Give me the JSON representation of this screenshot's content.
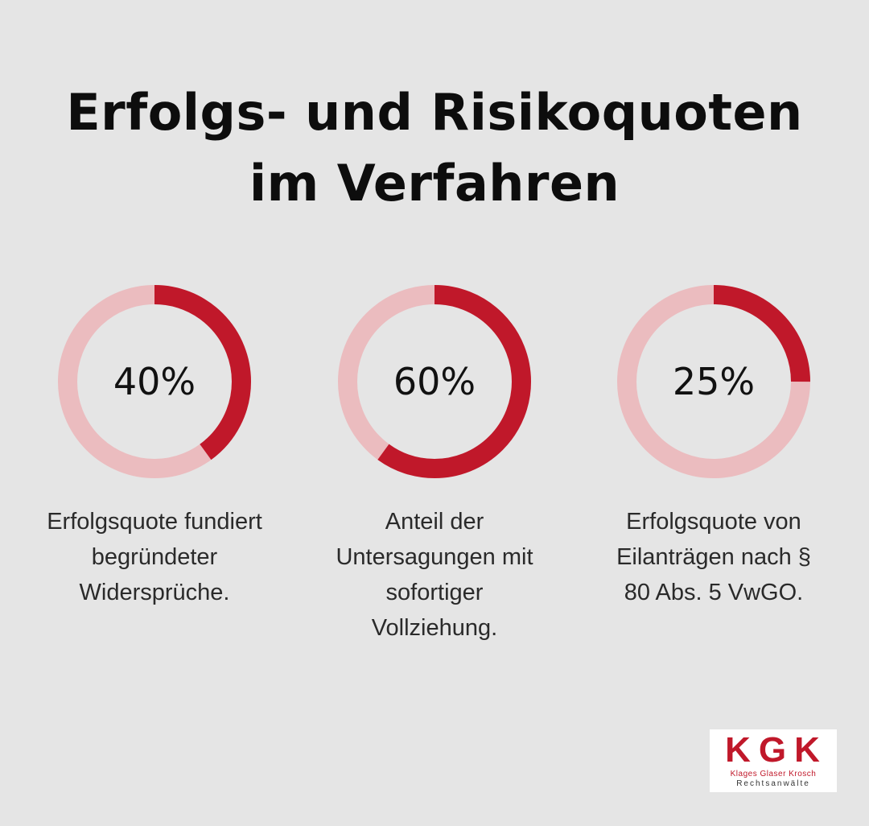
{
  "header": {
    "title_line1": "Erfolgs- und Risikoquoten",
    "title_line2": "im Verfahren"
  },
  "chart_data": [
    {
      "type": "pie",
      "label": "40%",
      "value": 40,
      "caption_lines": [
        "Erfolgsquote fundiert",
        "begründeter",
        "Widersprüche."
      ]
    },
    {
      "type": "pie",
      "label": "60%",
      "value": 60,
      "caption_lines": [
        "Anteil der",
        "Untersagungen mit",
        "sofortiger",
        "Vollziehung."
      ]
    },
    {
      "type": "pie",
      "label": "25%",
      "value": 25,
      "caption_lines": [
        "Erfolgsquote von",
        "Eilanträgen nach §",
        "80 Abs. 5 VwGO."
      ]
    }
  ],
  "colors": {
    "accent": "#c0182a",
    "track": "#ebbcbf",
    "background": "#e5e5e5"
  },
  "logo": {
    "letters": "KGK",
    "names": "Klages Glaser Krosch",
    "subtitle": "Rechtsanwälte"
  }
}
